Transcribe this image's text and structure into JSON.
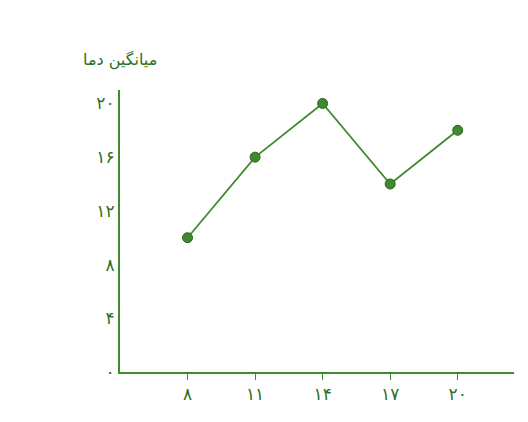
{
  "chart_data": {
    "type": "line",
    "ylabel": "میانگین دما",
    "x": [
      8,
      11,
      14,
      17,
      20
    ],
    "values": [
      10,
      16,
      20,
      14,
      18
    ],
    "color": "#3f8a2e",
    "marker": "circle",
    "line_style": "solid",
    "grid": false,
    "xlim": [
      5,
      22.5
    ],
    "xticks": [
      {
        "value": 8,
        "label": "۸"
      },
      {
        "value": 11,
        "label": "۱۱"
      },
      {
        "value": 14,
        "label": "۱۴"
      },
      {
        "value": 17,
        "label": "۱۷"
      },
      {
        "value": 20,
        "label": "۲۰"
      }
    ],
    "ylim": [
      0,
      21
    ],
    "yticks": [
      {
        "value": 0,
        "label": "۰"
      },
      {
        "value": 4,
        "label": "۴"
      },
      {
        "value": 8,
        "label": "۸"
      },
      {
        "value": 12,
        "label": "۱۲"
      },
      {
        "value": 16,
        "label": "۱۶"
      },
      {
        "value": 20,
        "label": "۲۰"
      }
    ]
  }
}
